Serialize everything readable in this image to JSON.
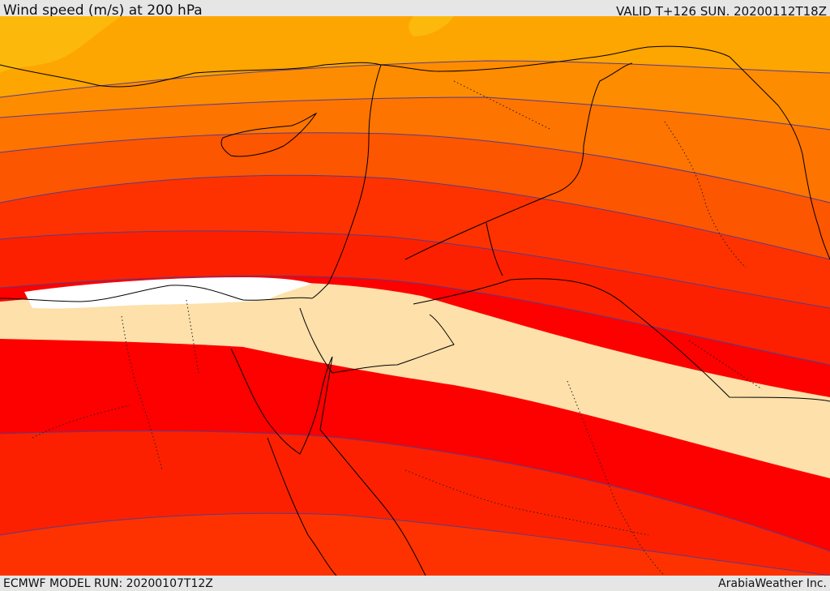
{
  "header": {
    "title": "Wind speed (m/s) at 200 hPa",
    "valid": "VALID T+126 SUN. 20200112T18Z"
  },
  "footer": {
    "model_run": "ECMWF MODEL RUN: 20200107T12Z",
    "credit": "ArabiaWeather Inc."
  },
  "colors": {
    "band_lightest": "#fcb80b",
    "band_light": "#fda500",
    "band_orange": "#fd8c00",
    "band_orange2": "#fd7400",
    "band_deep": "#fd5600",
    "band_red_orange": "#fd3200",
    "band_red": "#fd2000",
    "band_max": "#fd0000",
    "core": "#fde0aa",
    "white_core": "#ffffff",
    "contour": "#5a3a8a",
    "coastline": "#000000"
  }
}
